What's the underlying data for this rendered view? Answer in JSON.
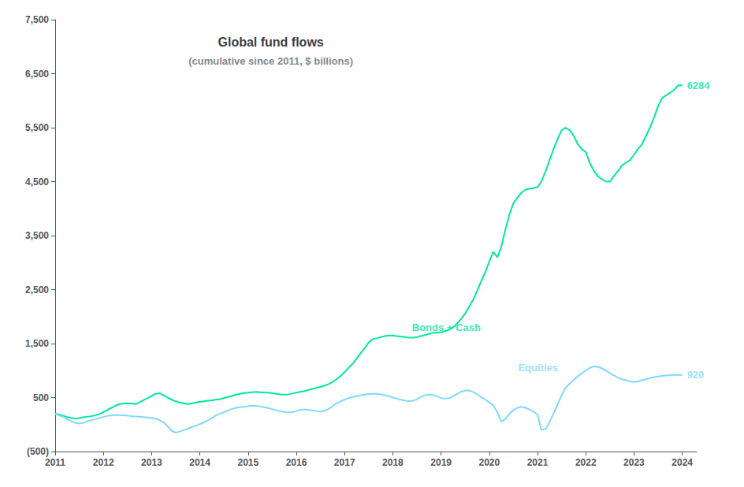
{
  "chart_data": {
    "type": "line",
    "title": "Global fund flows",
    "subtitle": "(cumulative since 2011, $ billions)",
    "grid": false,
    "xlim": [
      2011,
      2024.3
    ],
    "xticks": [
      2011,
      2012,
      2013,
      2014,
      2015,
      2016,
      2017,
      2018,
      2019,
      2020,
      2021,
      2022,
      2023,
      2024
    ],
    "ylim": [
      -500,
      7500
    ],
    "yticks": [
      {
        "value": -500,
        "label": "(500)"
      },
      500,
      {
        "value": 1500,
        "label": "1,500"
      },
      {
        "value": 2500,
        "label": "2,500"
      },
      {
        "value": 3500,
        "label": "3,500"
      },
      {
        "value": 4500,
        "label": "4,500"
      },
      {
        "value": 5500,
        "label": "5,500"
      },
      {
        "value": 6500,
        "label": "6,500"
      },
      {
        "value": 7500,
        "label": "7,500"
      }
    ],
    "x": [
      2011.0,
      2011.08,
      2011.17,
      2011.25,
      2011.33,
      2011.42,
      2011.5,
      2011.58,
      2011.67,
      2011.75,
      2011.83,
      2011.92,
      2012.0,
      2012.08,
      2012.17,
      2012.25,
      2012.33,
      2012.42,
      2012.5,
      2012.58,
      2012.67,
      2012.75,
      2012.83,
      2012.92,
      2013.0,
      2013.08,
      2013.17,
      2013.25,
      2013.33,
      2013.42,
      2013.5,
      2013.58,
      2013.67,
      2013.75,
      2013.83,
      2013.92,
      2014.0,
      2014.08,
      2014.17,
      2014.25,
      2014.33,
      2014.42,
      2014.5,
      2014.58,
      2014.67,
      2014.75,
      2014.83,
      2014.92,
      2015.0,
      2015.08,
      2015.17,
      2015.25,
      2015.33,
      2015.42,
      2015.5,
      2015.58,
      2015.67,
      2015.75,
      2015.83,
      2015.92,
      2016.0,
      2016.08,
      2016.17,
      2016.25,
      2016.33,
      2016.42,
      2016.5,
      2016.58,
      2016.67,
      2016.75,
      2016.83,
      2016.92,
      2017.0,
      2017.08,
      2017.17,
      2017.25,
      2017.33,
      2017.42,
      2017.5,
      2017.58,
      2017.67,
      2017.75,
      2017.83,
      2017.92,
      2018.0,
      2018.08,
      2018.17,
      2018.25,
      2018.33,
      2018.42,
      2018.5,
      2018.58,
      2018.67,
      2018.75,
      2018.83,
      2018.92,
      2019.0,
      2019.08,
      2019.17,
      2019.25,
      2019.33,
      2019.42,
      2019.5,
      2019.58,
      2019.67,
      2019.75,
      2019.83,
      2019.92,
      2020.0,
      2020.08,
      2020.17,
      2020.25,
      2020.33,
      2020.42,
      2020.5,
      2020.58,
      2020.67,
      2020.75,
      2020.83,
      2020.92,
      2021.0,
      2021.08,
      2021.17,
      2021.25,
      2021.33,
      2021.42,
      2021.5,
      2021.58,
      2021.67,
      2021.75,
      2021.83,
      2021.92,
      2022.0,
      2022.08,
      2022.17,
      2022.25,
      2022.33,
      2022.42,
      2022.5,
      2022.58,
      2022.67,
      2022.75,
      2022.83,
      2022.92,
      2023.0,
      2023.08,
      2023.17,
      2023.25,
      2023.33,
      2023.42,
      2023.5,
      2023.58,
      2023.67,
      2023.75,
      2023.83,
      2023.92,
      2024.0
    ],
    "series": [
      {
        "color": "#00e8a0",
        "values": [
          200,
          185,
          160,
          140,
          125,
          110,
          120,
          135,
          145,
          155,
          170,
          195,
          230,
          270,
          310,
          350,
          380,
          390,
          395,
          390,
          380,
          410,
          450,
          490,
          530,
          570,
          580,
          540,
          500,
          460,
          430,
          410,
          390,
          380,
          390,
          410,
          420,
          430,
          440,
          450,
          460,
          470,
          490,
          510,
          530,
          555,
          570,
          585,
          590,
          600,
          605,
          600,
          595,
          590,
          580,
          570,
          560,
          555,
          560,
          575,
          590,
          605,
          620,
          640,
          660,
          680,
          700,
          720,
          750,
          790,
          840,
          900,
          970,
          1050,
          1130,
          1220,
          1320,
          1420,
          1520,
          1580,
          1600,
          1620,
          1640,
          1650,
          1650,
          1640,
          1630,
          1620,
          1610,
          1610,
          1620,
          1640,
          1660,
          1680,
          1700,
          1700,
          1710,
          1730,
          1760,
          1800,
          1870,
          1960,
          2060,
          2180,
          2320,
          2480,
          2650,
          2830,
          3020,
          3200,
          3100,
          3300,
          3600,
          3900,
          4100,
          4200,
          4300,
          4350,
          4370,
          4380,
          4400,
          4500,
          4700,
          4900,
          5100,
          5300,
          5450,
          5500,
          5450,
          5350,
          5200,
          5100,
          5050,
          4850,
          4700,
          4600,
          4550,
          4500,
          4500,
          4600,
          4700,
          4800,
          4850,
          4900,
          5000,
          5100,
          5200,
          5350,
          5500,
          5700,
          5900,
          6050,
          6100,
          6150,
          6200,
          6284,
          6284
        ]
      },
      {
        "color": "#80d8ff",
        "values": [
          200,
          170,
          140,
          100,
          60,
          30,
          20,
          30,
          60,
          80,
          100,
          120,
          140,
          160,
          170,
          175,
          175,
          170,
          165,
          155,
          150,
          145,
          140,
          130,
          120,
          110,
          80,
          40,
          -30,
          -120,
          -150,
          -130,
          -100,
          -80,
          -50,
          -20,
          10,
          40,
          80,
          120,
          170,
          200,
          230,
          260,
          290,
          310,
          320,
          330,
          340,
          350,
          345,
          335,
          320,
          305,
          285,
          265,
          245,
          235,
          225,
          230,
          250,
          270,
          280,
          275,
          260,
          250,
          240,
          255,
          290,
          340,
          390,
          430,
          460,
          490,
          510,
          530,
          545,
          555,
          565,
          570,
          570,
          560,
          545,
          525,
          500,
          480,
          460,
          445,
          435,
          440,
          470,
          510,
          545,
          555,
          545,
          520,
          490,
          480,
          490,
          520,
          565,
          610,
          630,
          630,
          600,
          560,
          510,
          460,
          410,
          360,
          220,
          50,
          100,
          200,
          270,
          310,
          330,
          310,
          280,
          240,
          180,
          -100,
          -80,
          50,
          200,
          380,
          550,
          680,
          760,
          830,
          890,
          950,
          1000,
          1050,
          1080,
          1070,
          1040,
          1000,
          950,
          910,
          870,
          840,
          820,
          800,
          790,
          800,
          820,
          840,
          860,
          880,
          890,
          900,
          910,
          915,
          918,
          920,
          920
        ]
      }
    ],
    "annotations": [
      {
        "text": "Bonds + Cash",
        "x": 2018.3,
        "y": 1800,
        "color": "#00e8a0"
      },
      {
        "text": "Equities",
        "x": 2020.5,
        "y": 1050,
        "color": "#80d8ff"
      },
      {
        "text": "6284",
        "x": 2024.0,
        "y": 6284,
        "color": "#00e8a0"
      },
      {
        "text": "920",
        "x": 2024.0,
        "y": 920,
        "color": "#80d8ff"
      }
    ]
  }
}
